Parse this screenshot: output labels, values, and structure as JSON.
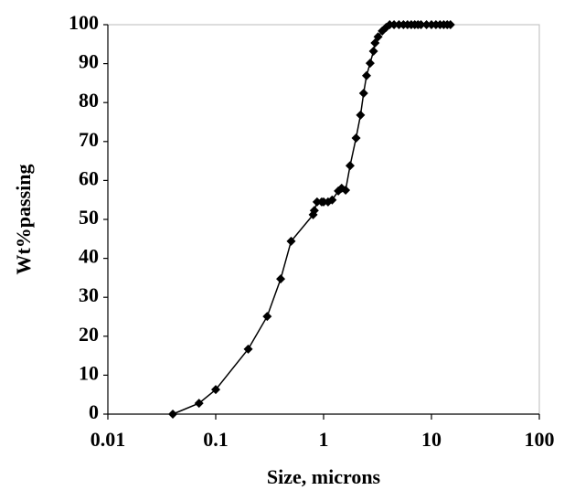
{
  "chart_data": {
    "type": "line",
    "xscale": "log",
    "x": [
      0.04,
      0.07,
      0.1,
      0.2,
      0.3,
      0.4,
      0.5,
      0.8,
      0.82,
      0.87,
      0.96,
      1.0,
      1.1,
      1.2,
      1.37,
      1.47,
      1.6,
      1.76,
      2.0,
      2.2,
      2.35,
      2.5,
      2.7,
      2.9,
      3.0,
      3.2,
      3.5,
      3.8,
      4.1,
      4.5,
      5,
      5.5,
      6,
      6.5,
      7,
      7.5,
      8,
      9,
      10,
      11,
      12,
      13,
      14,
      15
    ],
    "series": [
      {
        "name": "Wt%passing",
        "color": "#000000",
        "values": [
          0,
          2.8,
          6.3,
          16.7,
          25.1,
          34.7,
          44.4,
          51.2,
          52.3,
          54.5,
          54.5,
          54.5,
          54.5,
          55,
          57.3,
          58,
          57.5,
          63.8,
          70.9,
          76.8,
          82.4,
          86.9,
          90.1,
          93.2,
          95.3,
          96.9,
          98.4,
          99.3,
          100,
          100,
          100,
          100,
          100,
          100,
          100,
          100,
          100,
          100,
          100,
          100,
          100,
          100,
          100,
          100
        ]
      }
    ],
    "xlabel": "Size, microns",
    "ylabel": "Wt%passing",
    "xlim": [
      0.01,
      100
    ],
    "xticks": [
      0.01,
      0.1,
      1,
      10,
      100
    ],
    "ylim": [
      0,
      100
    ],
    "yticks": [
      0,
      10,
      20,
      30,
      40,
      50,
      60,
      70,
      80,
      90,
      100
    ]
  }
}
